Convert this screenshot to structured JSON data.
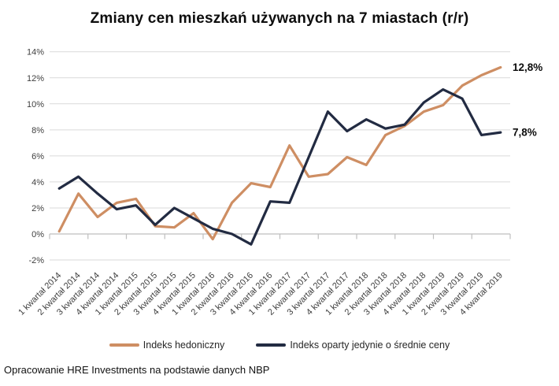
{
  "title": "Zmiany cen mieszkań używanych na 7 miastach (r/r)",
  "footer": "Opracowanie HRE Investments na podstawie danych NBP",
  "legend": [
    {
      "label": "Indeks hedoniczny",
      "color": "#CE8E63"
    },
    {
      "label": "Indeks oparty jedynie o średnie ceny",
      "color": "#222B42"
    }
  ],
  "chart_data": {
    "type": "line",
    "title": "Zmiany cen mieszkań używanych na 7 miastach (r/r)",
    "categories": [
      "1 kwartał 2014",
      "2 kwartał 2014",
      "3 kwartał 2014",
      "4 kwartał 2014",
      "1 kwartał 2015",
      "2 kwartał 2015",
      "3 kwartał 2015",
      "4 kwartał 2015",
      "1 kwartał 2016",
      "2 kwartał 2016",
      "3 kwartał 2016",
      "4 kwartał 2016",
      "1 kwartał 2017",
      "2 kwartał 2017",
      "3 kwartał 2017",
      "4 kwartał 2017",
      "1 kwartał 2018",
      "2 kwartał 2018",
      "3 kwartał 2018",
      "4 kwartał 2018",
      "1 kwartał 2019",
      "2 kwartał 2019",
      "3 kwartał 2019",
      "4 kwartał 2019"
    ],
    "series": [
      {
        "name": "Indeks hedoniczny",
        "color": "#CE8E63",
        "end_label": "12,8%",
        "values": [
          0.2,
          3.1,
          1.3,
          2.4,
          2.7,
          0.6,
          0.5,
          1.6,
          -0.4,
          2.4,
          3.9,
          3.6,
          6.8,
          4.4,
          4.6,
          5.9,
          5.3,
          7.6,
          8.3,
          9.4,
          9.9,
          11.4,
          12.2,
          12.8
        ]
      },
      {
        "name": "Indeks oparty jedynie o średnie ceny",
        "color": "#222B42",
        "end_label": "7,8%",
        "values": [
          3.5,
          4.4,
          3.1,
          1.9,
          2.2,
          0.7,
          2.0,
          1.2,
          0.4,
          0.0,
          -0.8,
          2.5,
          2.4,
          5.9,
          9.4,
          7.9,
          8.8,
          8.1,
          8.4,
          10.1,
          11.1,
          10.4,
          7.6,
          7.8
        ]
      }
    ],
    "y_axis": {
      "tick_values": [
        14,
        12,
        10,
        8,
        6,
        4,
        2,
        0,
        -2
      ],
      "tick_labels": [
        "14%",
        "12%",
        "10%",
        "8%",
        "6%",
        "4%",
        "2%",
        "0%",
        "-2%"
      ]
    },
    "ylim": [
      -2,
      14
    ],
    "grid": true,
    "grid_color": "#D9D9D9",
    "axis_color": "#BFBFBF",
    "tick_label_color": "#3F3F3F",
    "legend_position": "bottom"
  }
}
